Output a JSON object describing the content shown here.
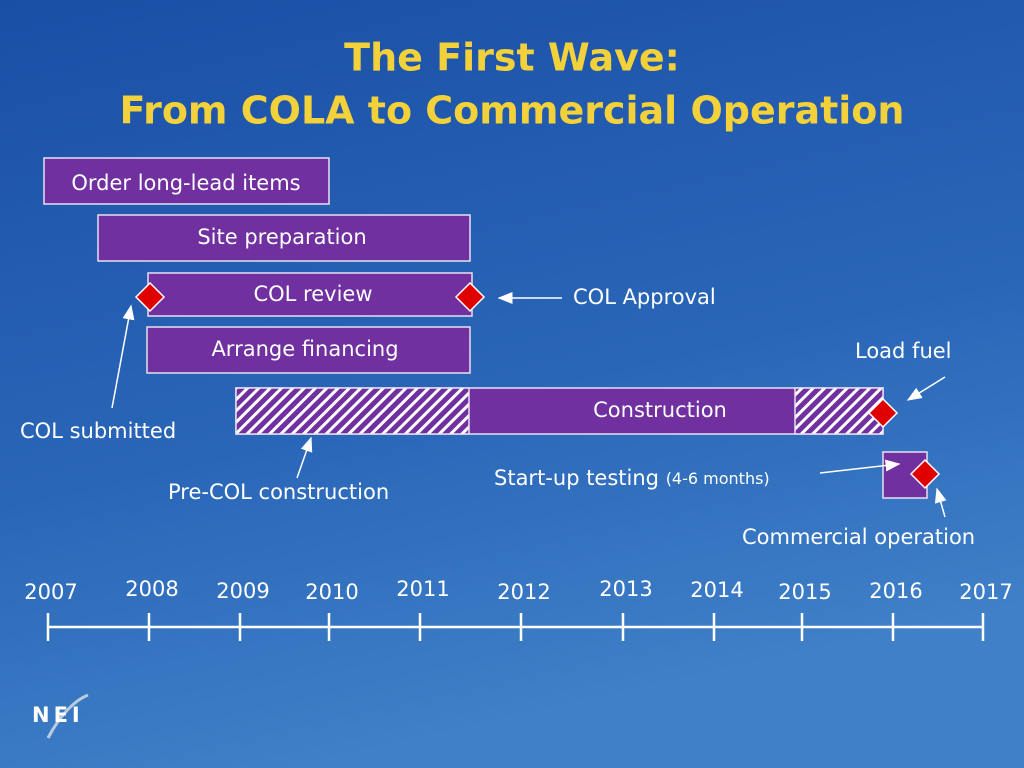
{
  "title": {
    "line1": "The First Wave:",
    "line2": "From COLA to Commercial Operation"
  },
  "tasks": [
    "Order long-lead items",
    "Site preparation",
    "COL review",
    "Arrange financing",
    "Construction"
  ],
  "annotations": {
    "col_approval": "COL Approval",
    "load_fuel": "Load fuel",
    "col_submitted": "COL submitted",
    "pre_col_construction": "Pre-COL construction",
    "startup_testing": "Start-up testing",
    "startup_duration": "(4-6 months)",
    "commercial_operation": "Commercial operation"
  },
  "timeline": {
    "years": [
      "2007",
      "2008",
      "2009",
      "2010",
      "2011",
      "2012",
      "2013",
      "2014",
      "2015",
      "2016",
      "2017"
    ]
  },
  "logo": "NEI"
}
